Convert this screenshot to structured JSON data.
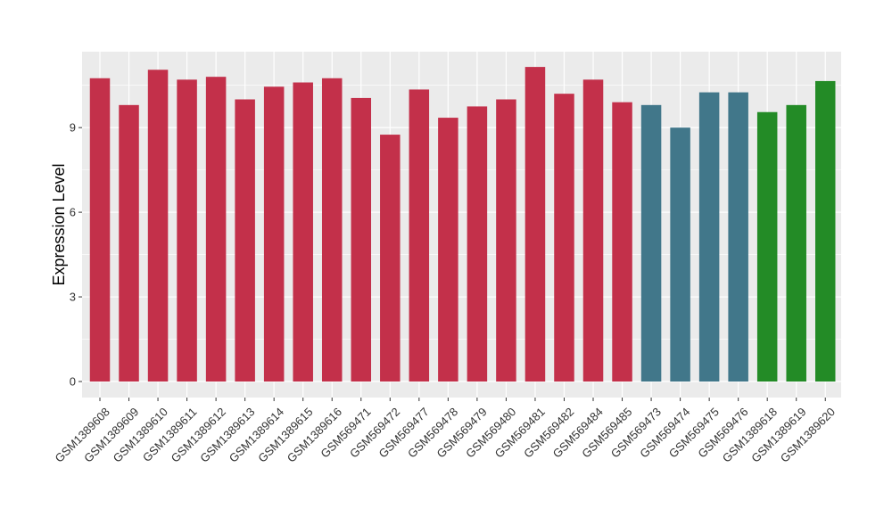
{
  "chart_data": {
    "type": "bar",
    "title": "",
    "xlabel": "",
    "ylabel": "Expression Level",
    "ylim": [
      0,
      11.8
    ],
    "yticks": [
      0,
      3,
      6,
      9
    ],
    "grid": true,
    "legend": "none",
    "categories": [
      "GSM1389608",
      "GSM1389609",
      "GSM1389610",
      "GSM1389611",
      "GSM1389612",
      "GSM1389613",
      "GSM1389614",
      "GSM1389615",
      "GSM1389616",
      "GSM569471",
      "GSM569472",
      "GSM569477",
      "GSM569478",
      "GSM569479",
      "GSM569480",
      "GSM569481",
      "GSM569482",
      "GSM569484",
      "GSM569485",
      "GSM569473",
      "GSM569474",
      "GSM569475",
      "GSM569476",
      "GSM1389618",
      "GSM1389619",
      "GSM1389620"
    ],
    "values": [
      10.75,
      9.8,
      11.05,
      10.7,
      10.8,
      10.0,
      10.45,
      10.6,
      10.75,
      10.05,
      8.75,
      10.35,
      9.35,
      9.75,
      10.0,
      11.15,
      10.2,
      10.7,
      9.9,
      9.8,
      9.0,
      10.25,
      10.25,
      9.55,
      9.8,
      10.65
    ],
    "bar_colors": [
      "#C3304A",
      "#C3304A",
      "#C3304A",
      "#C3304A",
      "#C3304A",
      "#C3304A",
      "#C3304A",
      "#C3304A",
      "#C3304A",
      "#C3304A",
      "#C3304A",
      "#C3304A",
      "#C3304A",
      "#C3304A",
      "#C3304A",
      "#C3304A",
      "#C3304A",
      "#C3304A",
      "#C3304A",
      "#41778A",
      "#41778A",
      "#41778A",
      "#41778A",
      "#238B26",
      "#238B26",
      "#238B26"
    ],
    "panel_background": "#EBEBEB",
    "grid_color": "#FFFFFF"
  }
}
